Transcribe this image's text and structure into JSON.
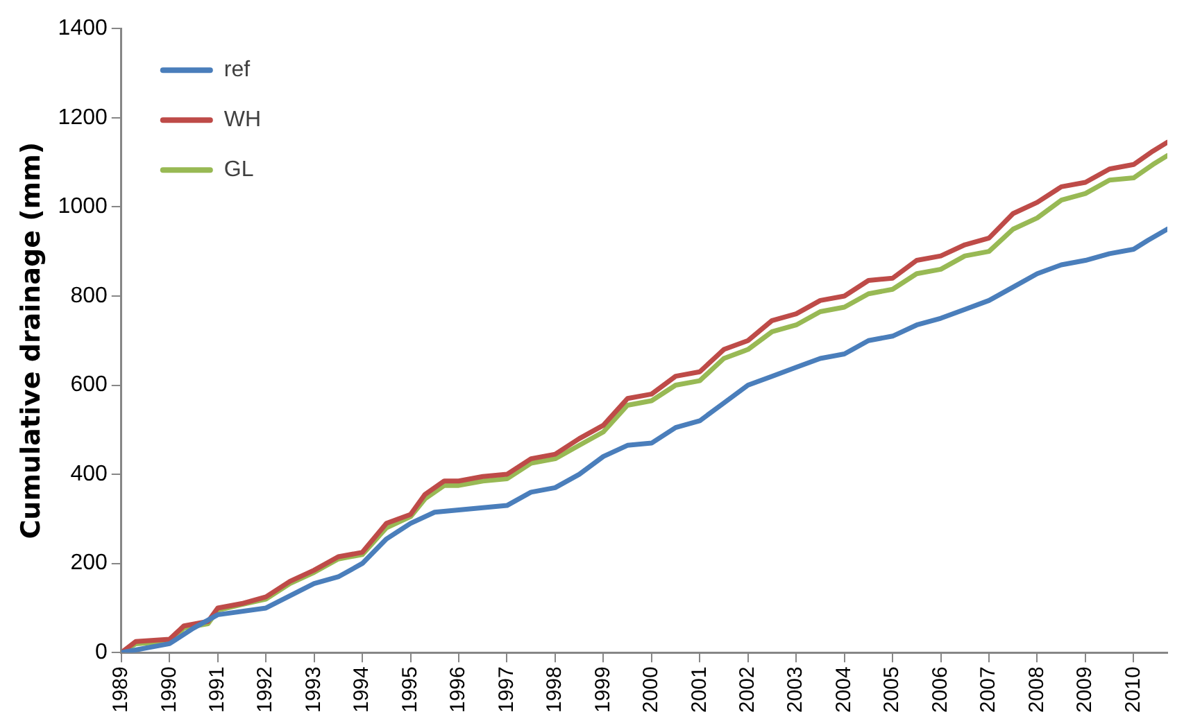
{
  "chart_data": {
    "type": "line",
    "ylabel": "Cumulative drainage (mm)",
    "xlim": [
      1989,
      2010.7
    ],
    "xticks": [
      1989,
      1990,
      1991,
      1992,
      1993,
      1994,
      1995,
      1996,
      1997,
      1998,
      1999,
      2000,
      2001,
      2002,
      2003,
      2004,
      2005,
      2006,
      2007,
      2008,
      2009,
      2010
    ],
    "ylim": [
      0,
      1400
    ],
    "yticks": [
      0,
      200,
      400,
      600,
      800,
      1000,
      1200,
      1400
    ],
    "grid": false,
    "legend": "top left",
    "marker": "none",
    "line_style": "solid",
    "series": [
      {
        "name": "ref",
        "color": "#4a7ebb",
        "x": [
          1989,
          1990,
          1990.5,
          1991,
          1992,
          1993,
          1993.5,
          1994,
          1994.5,
          1995,
          1995.5,
          1996,
          1997,
          1997.5,
          1998,
          1998.5,
          1999,
          1999.5,
          2000,
          2000.5,
          2001,
          2001.5,
          2002,
          2002.5,
          2003,
          2003.5,
          2004,
          2004.5,
          2005,
          2005.5,
          2006,
          2006.5,
          2007,
          2007.5,
          2008,
          2008.5,
          2009,
          2009.5,
          2010,
          2010.3,
          2010.7
        ],
        "values": [
          0,
          20,
          55,
          85,
          100,
          155,
          170,
          200,
          255,
          290,
          315,
          320,
          330,
          360,
          370,
          400,
          440,
          465,
          470,
          505,
          520,
          560,
          600,
          620,
          640,
          660,
          670,
          700,
          710,
          735,
          750,
          770,
          790,
          820,
          850,
          870,
          880,
          895,
          905,
          925,
          950
        ]
      },
      {
        "name": "WH",
        "color": "#be4b48",
        "x": [
          1989,
          1989.3,
          1990,
          1990.3,
          1990.8,
          1991,
          1991.5,
          1992,
          1992.5,
          1993,
          1993.5,
          1994,
          1994.5,
          1995,
          1995.3,
          1995.7,
          1996,
          1996.5,
          1997,
          1997.5,
          1998,
          1998.5,
          1999,
          1999.5,
          2000,
          2000.5,
          2001,
          2001.5,
          2002,
          2002.5,
          2003,
          2003.5,
          2004,
          2004.5,
          2005,
          2005.5,
          2006,
          2006.5,
          2007,
          2007.5,
          2008,
          2008.5,
          2009,
          2009.5,
          2010,
          2010.4,
          2010.7
        ],
        "values": [
          0,
          25,
          30,
          60,
          70,
          100,
          110,
          125,
          160,
          185,
          215,
          225,
          290,
          310,
          355,
          385,
          385,
          395,
          400,
          435,
          445,
          480,
          510,
          570,
          580,
          620,
          630,
          680,
          700,
          745,
          760,
          790,
          800,
          835,
          840,
          880,
          890,
          915,
          930,
          985,
          1010,
          1045,
          1055,
          1085,
          1095,
          1125,
          1145
        ]
      },
      {
        "name": "GL",
        "color": "#98b954",
        "x": [
          1989,
          1989.3,
          1990,
          1990.3,
          1990.8,
          1991,
          1991.5,
          1992,
          1992.5,
          1993,
          1993.5,
          1994,
          1994.5,
          1995,
          1995.3,
          1995.7,
          1996,
          1996.5,
          1997,
          1997.5,
          1998,
          1998.5,
          1999,
          1999.5,
          2000,
          2000.5,
          2001,
          2001.5,
          2002,
          2002.5,
          2003,
          2003.5,
          2004,
          2004.5,
          2005,
          2005.5,
          2006,
          2006.5,
          2007,
          2007.5,
          2008,
          2008.5,
          2009,
          2009.5,
          2010,
          2010.4,
          2010.7
        ],
        "values": [
          0,
          20,
          25,
          55,
          65,
          95,
          108,
          120,
          155,
          180,
          210,
          220,
          280,
          305,
          345,
          375,
          375,
          385,
          390,
          425,
          435,
          465,
          495,
          555,
          565,
          600,
          610,
          660,
          680,
          720,
          735,
          765,
          775,
          805,
          815,
          850,
          860,
          890,
          900,
          950,
          975,
          1015,
          1030,
          1060,
          1065,
          1095,
          1115
        ]
      }
    ]
  }
}
